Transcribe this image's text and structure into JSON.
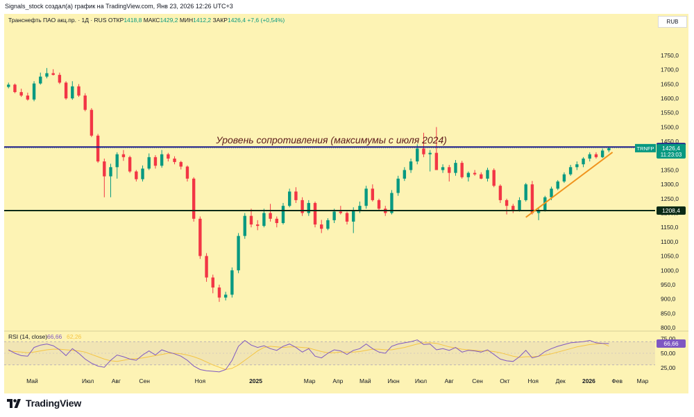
{
  "caption": "Signals_stock создал(а) график на TradingView.com, Янв 23, 2026 12:26 UTC+3",
  "legend": {
    "symbol": "Транснефть ПАО акц.пр. · 1Д · RUS",
    "open_label": "ОТКР",
    "open_value": "1418,8",
    "high_label": "МАКС",
    "high_value": "1429,2",
    "low_label": "МИН",
    "low_value": "1412,2",
    "close_label": "ЗАКР",
    "close_value": "1426,4",
    "change_value": "+7,6 (+0,54%)"
  },
  "currency_button": "RUB",
  "brand": "TradingView",
  "colors": {
    "background": "#fdf3b4",
    "candle_up": "#089981",
    "candle_down": "#f23645",
    "resistance_line": "#1c1a8a",
    "support_line": "#0b2a16",
    "trendline": "#f0941e",
    "rsi_line": "#7e57c2",
    "rsi_ma": "#f5c542"
  },
  "chart_data": {
    "type": "candlestick",
    "symbol": "TRNFP",
    "interval": "1Д",
    "ylim": [
      780,
      1790
    ],
    "y_ticks": [
      "1750,0",
      "1700,0",
      "1650,0",
      "1600,0",
      "1550,0",
      "1500,0",
      "1450,0",
      "1400,0",
      "1350,0",
      "1300,0",
      "1250,0",
      "1200,0",
      "1150,0",
      "1100,0",
      "1050,0",
      "1000,0",
      "950,0",
      "900,0",
      "850,0",
      "800,0"
    ],
    "x_ticks": [
      {
        "label": "Май",
        "date": "2024-05-01",
        "bold": false
      },
      {
        "label": "Июл",
        "date": "2024-07-01",
        "bold": false
      },
      {
        "label": "Авг",
        "date": "2024-08-01",
        "bold": false
      },
      {
        "label": "Сен",
        "date": "2024-09-01",
        "bold": false
      },
      {
        "label": "Ноя",
        "date": "2024-11-01",
        "bold": false
      },
      {
        "label": "2025",
        "date": "2025-01-01",
        "bold": true
      },
      {
        "label": "Мар",
        "date": "2025-03-01",
        "bold": false
      },
      {
        "label": "Апр",
        "date": "2025-04-01",
        "bold": false
      },
      {
        "label": "Май",
        "date": "2025-05-01",
        "bold": false
      },
      {
        "label": "Июн",
        "date": "2025-06-01",
        "bold": false
      },
      {
        "label": "Июл",
        "date": "2025-07-01",
        "bold": false
      },
      {
        "label": "Авг",
        "date": "2025-08-01",
        "bold": false
      },
      {
        "label": "Сен",
        "date": "2025-09-01",
        "bold": false
      },
      {
        "label": "Окт",
        "date": "2025-10-01",
        "bold": false
      },
      {
        "label": "Ноя",
        "date": "2025-11-01",
        "bold": false
      },
      {
        "label": "Дек",
        "date": "2025-12-01",
        "bold": false
      },
      {
        "label": "2026",
        "date": "2026-01-01",
        "bold": true
      },
      {
        "label": "Фев",
        "date": "2026-02-01",
        "bold": false
      },
      {
        "label": "Мар",
        "date": "2026-03-01",
        "bold": false
      }
    ],
    "candles": {
      "dates": [
        "2024-04-05",
        "2024-04-12",
        "2024-04-19",
        "2024-04-26",
        "2024-05-03",
        "2024-05-10",
        "2024-05-17",
        "2024-05-24",
        "2024-05-31",
        "2024-06-07",
        "2024-06-14",
        "2024-06-21",
        "2024-06-28",
        "2024-07-05",
        "2024-07-12",
        "2024-07-19",
        "2024-07-26",
        "2024-08-02",
        "2024-08-09",
        "2024-08-16",
        "2024-08-23",
        "2024-08-30",
        "2024-09-06",
        "2024-09-13",
        "2024-09-20",
        "2024-09-27",
        "2024-10-04",
        "2024-10-11",
        "2024-10-18",
        "2024-10-25",
        "2024-11-01",
        "2024-11-08",
        "2024-11-15",
        "2024-11-22",
        "2024-11-29",
        "2024-12-06",
        "2024-12-13",
        "2024-12-20",
        "2024-12-27",
        "2025-01-03",
        "2025-01-10",
        "2025-01-17",
        "2025-01-24",
        "2025-01-31",
        "2025-02-07",
        "2025-02-14",
        "2025-02-21",
        "2025-02-28",
        "2025-03-07",
        "2025-03-14",
        "2025-03-21",
        "2025-03-28",
        "2025-04-04",
        "2025-04-11",
        "2025-04-18",
        "2025-04-25",
        "2025-05-02",
        "2025-05-09",
        "2025-05-16",
        "2025-05-23",
        "2025-05-30",
        "2025-06-06",
        "2025-06-13",
        "2025-06-20",
        "2025-06-27",
        "2025-07-04",
        "2025-07-11",
        "2025-07-18",
        "2025-07-25",
        "2025-08-01",
        "2025-08-08",
        "2025-08-15",
        "2025-08-22",
        "2025-08-29",
        "2025-09-05",
        "2025-09-12",
        "2025-09-19",
        "2025-09-26",
        "2025-10-03",
        "2025-10-10",
        "2025-10-17",
        "2025-10-24",
        "2025-10-31",
        "2025-11-07",
        "2025-11-14",
        "2025-11-21",
        "2025-11-28",
        "2025-12-05",
        "2025-12-12",
        "2025-12-19",
        "2025-12-26",
        "2026-01-02",
        "2026-01-09",
        "2026-01-16",
        "2026-01-23"
      ],
      "open": [
        1640,
        1648,
        1622,
        1610,
        1596,
        1652,
        1676,
        1688,
        1682,
        1655,
        1600,
        1642,
        1610,
        1560,
        1470,
        1380,
        1328,
        1360,
        1405,
        1395,
        1345,
        1318,
        1355,
        1395,
        1365,
        1405,
        1390,
        1378,
        1362,
        1320,
        1180,
        1050,
        975,
        940,
        905,
        915,
        1000,
        1120,
        1190,
        1160,
        1155,
        1200,
        1180,
        1165,
        1225,
        1275,
        1245,
        1200,
        1235,
        1160,
        1145,
        1175,
        1205,
        1200,
        1170,
        1210,
        1225,
        1285,
        1245,
        1215,
        1200,
        1270,
        1320,
        1350,
        1380,
        1425,
        1405,
        1410,
        1350,
        1360,
        1340,
        1375,
        1325,
        1340,
        1335,
        1320,
        1350,
        1295,
        1245,
        1225,
        1210,
        1245,
        1300,
        1200,
        1210,
        1255,
        1285,
        1310,
        1335,
        1360,
        1370,
        1390,
        1405,
        1395,
        1418.8
      ],
      "high": [
        1655,
        1652,
        1634,
        1620,
        1660,
        1690,
        1706,
        1702,
        1690,
        1660,
        1660,
        1650,
        1618,
        1566,
        1476,
        1390,
        1372,
        1412,
        1420,
        1400,
        1350,
        1366,
        1408,
        1402,
        1420,
        1410,
        1398,
        1382,
        1366,
        1325,
        1188,
        1060,
        985,
        950,
        925,
        1010,
        1130,
        1200,
        1215,
        1175,
        1215,
        1232,
        1188,
        1235,
        1285,
        1290,
        1255,
        1245,
        1240,
        1176,
        1182,
        1215,
        1225,
        1205,
        1220,
        1240,
        1295,
        1300,
        1250,
        1225,
        1280,
        1330,
        1360,
        1390,
        1440,
        1480,
        1420,
        1500,
        1370,
        1368,
        1385,
        1382,
        1345,
        1350,
        1342,
        1358,
        1356,
        1300,
        1250,
        1232,
        1255,
        1305,
        1312,
        1220,
        1260,
        1292,
        1315,
        1342,
        1368,
        1380,
        1395,
        1412,
        1412,
        1425,
        1429.2
      ],
      "low": [
        1635,
        1618,
        1605,
        1592,
        1590,
        1648,
        1670,
        1680,
        1650,
        1595,
        1595,
        1605,
        1555,
        1465,
        1375,
        1255,
        1255,
        1320,
        1382,
        1340,
        1310,
        1310,
        1350,
        1355,
        1358,
        1380,
        1370,
        1352,
        1310,
        1170,
        1040,
        960,
        920,
        890,
        895,
        905,
        990,
        1110,
        1150,
        1140,
        1150,
        1170,
        1150,
        1160,
        1220,
        1235,
        1190,
        1190,
        1150,
        1130,
        1140,
        1165,
        1195,
        1160,
        1130,
        1200,
        1215,
        1240,
        1210,
        1190,
        1195,
        1260,
        1312,
        1340,
        1370,
        1395,
        1345,
        1398,
        1340,
        1310,
        1330,
        1320,
        1310,
        1330,
        1318,
        1310,
        1290,
        1235,
        1195,
        1200,
        1205,
        1240,
        1195,
        1175,
        1205,
        1245,
        1280,
        1305,
        1330,
        1350,
        1360,
        1380,
        1390,
        1392,
        1412.2
      ],
      "close": [
        1648,
        1622,
        1610,
        1596,
        1652,
        1676,
        1688,
        1682,
        1655,
        1600,
        1642,
        1610,
        1560,
        1470,
        1380,
        1328,
        1360,
        1405,
        1395,
        1345,
        1318,
        1355,
        1395,
        1365,
        1405,
        1390,
        1378,
        1362,
        1320,
        1180,
        1050,
        975,
        940,
        905,
        915,
        1000,
        1120,
        1190,
        1160,
        1155,
        1200,
        1180,
        1165,
        1225,
        1275,
        1245,
        1200,
        1235,
        1160,
        1145,
        1175,
        1205,
        1200,
        1170,
        1210,
        1225,
        1285,
        1245,
        1215,
        1200,
        1270,
        1320,
        1350,
        1380,
        1425,
        1405,
        1410,
        1350,
        1360,
        1340,
        1375,
        1325,
        1340,
        1335,
        1320,
        1350,
        1295,
        1245,
        1225,
        1210,
        1245,
        1300,
        1200,
        1210,
        1255,
        1285,
        1310,
        1335,
        1360,
        1370,
        1390,
        1405,
        1395,
        1418,
        1426.4
      ]
    },
    "horizontal_levels": [
      {
        "value": 1430.2,
        "label": "1430,2",
        "color": "#1c1a8a"
      },
      {
        "value": 1208.4,
        "label": "1208,4",
        "color": "#0b2a16"
      }
    ],
    "trendline": {
      "from": {
        "date": "2025-10-24",
        "value": 1185
      },
      "to": {
        "date": "2026-01-27",
        "value": 1412
      }
    },
    "annotation": {
      "text": "Уровень сопротивления (максимумы с июля 2024)",
      "date": "2025-03-25",
      "value": 1443
    },
    "last_price": {
      "symbol": "TRNFP",
      "value": "1426,4",
      "countdown": "11:23:03"
    },
    "rsi": {
      "title": "RSI (14, close)",
      "value": "66,66",
      "ma_value": "62,26",
      "ylim": [
        20,
        78
      ],
      "ticks": [
        "75,00",
        "50,00",
        "25,00"
      ],
      "bands": [
        70,
        30
      ],
      "values": [
        56,
        50,
        46,
        45,
        60,
        64,
        66,
        63,
        56,
        46,
        58,
        50,
        40,
        33,
        28,
        26,
        38,
        47,
        44,
        40,
        38,
        47,
        54,
        47,
        56,
        52,
        49,
        45,
        38,
        28,
        22,
        20,
        19,
        18,
        22,
        38,
        62,
        72,
        64,
        60,
        63,
        58,
        55,
        62,
        66,
        60,
        52,
        58,
        45,
        42,
        50,
        56,
        54,
        48,
        55,
        58,
        66,
        58,
        52,
        50,
        62,
        66,
        68,
        70,
        73,
        65,
        66,
        56,
        58,
        55,
        60,
        52,
        55,
        54,
        52,
        56,
        48,
        40,
        37,
        36,
        44,
        55,
        42,
        45,
        53,
        58,
        62,
        65,
        68,
        69,
        70,
        72,
        68,
        67,
        66.66
      ],
      "ma": [
        54,
        53,
        52,
        51,
        52,
        54,
        56,
        57,
        57,
        56,
        55,
        54,
        52,
        48,
        44,
        40,
        37,
        36,
        38,
        40,
        41,
        42,
        44,
        46,
        48,
        50,
        50,
        49,
        47,
        44,
        40,
        35,
        30,
        26,
        22,
        24,
        30,
        38,
        46,
        54,
        60,
        62,
        61,
        60,
        61,
        61,
        60,
        59,
        56,
        53,
        51,
        51,
        52,
        52,
        52,
        53,
        55,
        57,
        57,
        56,
        56,
        58,
        60,
        63,
        66,
        68,
        68,
        67,
        64,
        61,
        59,
        57,
        56,
        55,
        54,
        54,
        53,
        51,
        48,
        45,
        43,
        44,
        44,
        45,
        47,
        49,
        52,
        55,
        58,
        61,
        63,
        65,
        66,
        67,
        62.26
      ]
    }
  }
}
